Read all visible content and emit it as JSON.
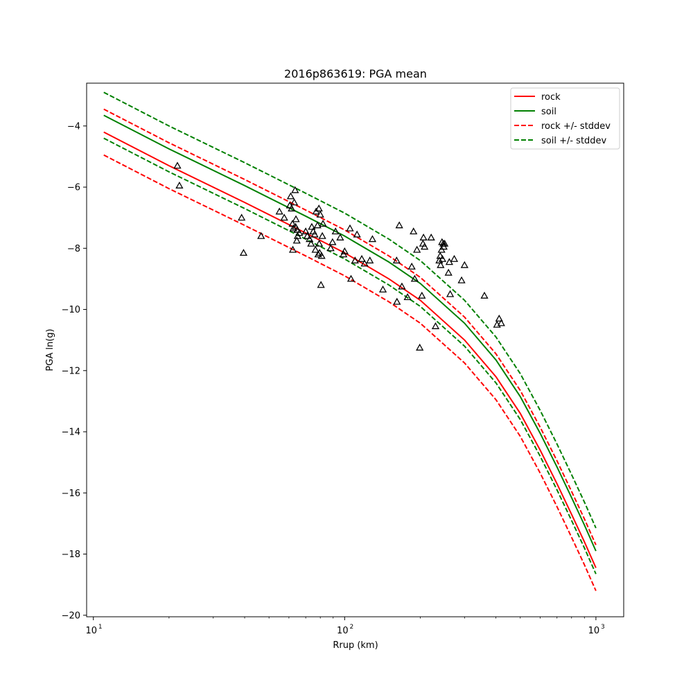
{
  "chart_data": {
    "type": "line",
    "title": "2016p863619: PGA mean",
    "xlabel": "Rrup (km)",
    "ylabel": "PGA ln(g)",
    "xscale": "log",
    "xlim": [
      9.4,
      1290
    ],
    "ylim": [
      -20.05,
      -2.6
    ],
    "x_ticks": [
      {
        "value": 10,
        "label": "10",
        "sup": "1"
      },
      {
        "value": 100,
        "label": "10",
        "sup": "2"
      },
      {
        "value": 1000,
        "label": "10",
        "sup": "3"
      }
    ],
    "y_ticks": [
      {
        "value": -4,
        "label": "−4"
      },
      {
        "value": -6,
        "label": "−6"
      },
      {
        "value": -8,
        "label": "−8"
      },
      {
        "value": -10,
        "label": "−10"
      },
      {
        "value": -12,
        "label": "−12"
      },
      {
        "value": -14,
        "label": "−14"
      },
      {
        "value": -16,
        "label": "−16"
      },
      {
        "value": -18,
        "label": "−18"
      },
      {
        "value": -20,
        "label": "−20"
      }
    ],
    "grid": false,
    "legend_position": "top-right",
    "series": [
      {
        "name": "rock",
        "color": "#ff0000",
        "style": "solid",
        "x": [
          11,
          20,
          40,
          70,
          100,
          150,
          200,
          300,
          400,
          500,
          600,
          700,
          800,
          900,
          1000
        ],
        "y": [
          -4.2,
          -5.3,
          -6.5,
          -7.5,
          -8.15,
          -9.0,
          -9.7,
          -11.0,
          -12.2,
          -13.4,
          -14.6,
          -15.7,
          -16.7,
          -17.6,
          -18.45
        ]
      },
      {
        "name": "soil",
        "color": "#008000",
        "style": "solid",
        "x": [
          11,
          20,
          40,
          70,
          100,
          150,
          200,
          300,
          400,
          500,
          600,
          700,
          800,
          900,
          1000
        ],
        "y": [
          -3.65,
          -4.75,
          -5.95,
          -6.95,
          -7.6,
          -8.45,
          -9.15,
          -10.45,
          -11.65,
          -12.85,
          -14.05,
          -15.15,
          -16.15,
          -17.05,
          -17.9
        ]
      },
      {
        "name": "rock +/- stddev",
        "color": "#ff0000",
        "style": "dashed",
        "x": [
          11,
          20,
          40,
          70,
          100,
          150,
          200,
          300,
          400,
          500,
          600,
          700,
          800,
          900,
          1000
        ],
        "y": [
          -3.45,
          -4.55,
          -5.75,
          -6.75,
          -7.4,
          -8.25,
          -8.95,
          -10.25,
          -11.45,
          -12.65,
          -13.85,
          -14.95,
          -15.95,
          -16.85,
          -17.7
        ]
      },
      {
        "name": "rock +/- stddev lower",
        "color": "#ff0000",
        "style": "dashed",
        "x": [
          11,
          20,
          40,
          70,
          100,
          150,
          200,
          300,
          400,
          500,
          600,
          700,
          800,
          900,
          1000
        ],
        "y": [
          -4.95,
          -6.05,
          -7.25,
          -8.25,
          -8.9,
          -9.75,
          -10.45,
          -11.75,
          -12.95,
          -14.15,
          -15.35,
          -16.45,
          -17.45,
          -18.35,
          -19.2
        ]
      },
      {
        "name": "soil +/- stddev",
        "color": "#008000",
        "style": "dashed",
        "x": [
          11,
          20,
          40,
          70,
          100,
          150,
          200,
          300,
          400,
          500,
          600,
          700,
          800,
          900,
          1000
        ],
        "y": [
          -2.9,
          -4.0,
          -5.2,
          -6.2,
          -6.85,
          -7.7,
          -8.4,
          -9.7,
          -10.9,
          -12.1,
          -13.3,
          -14.4,
          -15.4,
          -16.3,
          -17.15
        ]
      },
      {
        "name": "soil +/- stddev lower",
        "color": "#008000",
        "style": "dashed",
        "x": [
          11,
          20,
          40,
          70,
          100,
          150,
          200,
          300,
          400,
          500,
          600,
          700,
          800,
          900,
          1000
        ],
        "y": [
          -4.4,
          -5.5,
          -6.7,
          -7.7,
          -8.35,
          -9.2,
          -9.9,
          -11.2,
          -12.4,
          -13.6,
          -14.8,
          -15.9,
          -16.9,
          -17.8,
          -18.65
        ]
      }
    ],
    "legend": [
      {
        "label": "rock",
        "color": "#ff0000",
        "style": "solid"
      },
      {
        "label": "soil",
        "color": "#008000",
        "style": "solid"
      },
      {
        "label": "rock +/- stddev",
        "color": "#ff0000",
        "style": "dashed"
      },
      {
        "label": "soil +/- stddev",
        "color": "#008000",
        "style": "dashed"
      }
    ],
    "observations": {
      "marker": "triangle",
      "color": "#000000",
      "points": [
        [
          21.6,
          -5.3
        ],
        [
          22.0,
          -5.95
        ],
        [
          38.9,
          -7.0
        ],
        [
          39.6,
          -8.15
        ],
        [
          46.5,
          -7.6
        ],
        [
          55,
          -6.8
        ],
        [
          57.5,
          -7.0
        ],
        [
          60.5,
          -6.6
        ],
        [
          61,
          -6.3
        ],
        [
          61.5,
          -6.7
        ],
        [
          62,
          -7.2
        ],
        [
          62.2,
          -8.05
        ],
        [
          62.5,
          -7.35
        ],
        [
          63,
          -6.5
        ],
        [
          63.5,
          -6.1
        ],
        [
          63.8,
          -7.3
        ],
        [
          64,
          -7.05
        ],
        [
          64.5,
          -7.75
        ],
        [
          64.8,
          -7.4
        ],
        [
          65,
          -7.6
        ],
        [
          66,
          -7.5
        ],
        [
          70,
          -7.45
        ],
        [
          71,
          -7.6
        ],
        [
          72.5,
          -7.7
        ],
        [
          73.5,
          -7.85
        ],
        [
          74,
          -7.3
        ],
        [
          75,
          -7.45
        ],
        [
          76,
          -7.55
        ],
        [
          76.5,
          -8.05
        ],
        [
          77,
          -6.8
        ],
        [
          78,
          -7.25
        ],
        [
          78.5,
          -8.2
        ],
        [
          79,
          -6.7
        ],
        [
          79.2,
          -7.85
        ],
        [
          79.5,
          -8.15
        ],
        [
          80,
          -6.9
        ],
        [
          80.5,
          -9.2
        ],
        [
          81,
          -8.25
        ],
        [
          81.5,
          -7.6
        ],
        [
          82,
          -7.2
        ],
        [
          88,
          -8.0
        ],
        [
          89.5,
          -7.8
        ],
        [
          92,
          -7.45
        ],
        [
          96,
          -7.65
        ],
        [
          100,
          -8.1
        ],
        [
          99,
          -8.2
        ],
        [
          105,
          -7.35
        ],
        [
          106,
          -9.0
        ],
        [
          110,
          -8.4
        ],
        [
          112,
          -7.55
        ],
        [
          117,
          -8.35
        ],
        [
          120,
          -8.5
        ],
        [
          126,
          -8.4
        ],
        [
          129,
          -7.7
        ],
        [
          142,
          -9.35
        ],
        [
          161,
          -8.4
        ],
        [
          161.5,
          -9.75
        ],
        [
          165,
          -7.25
        ],
        [
          169,
          -9.25
        ],
        [
          178,
          -9.6
        ],
        [
          185,
          -8.6
        ],
        [
          188,
          -7.45
        ],
        [
          190,
          -9.0
        ],
        [
          194,
          -8.05
        ],
        [
          199,
          -11.25
        ],
        [
          203,
          -9.55
        ],
        [
          205,
          -7.85
        ],
        [
          206,
          -7.65
        ],
        [
          208,
          -7.95
        ],
        [
          221,
          -7.65
        ],
        [
          230,
          -10.55
        ],
        [
          238,
          -8.4
        ],
        [
          240,
          -8.25
        ],
        [
          241,
          -8.55
        ],
        [
          243,
          -8.05
        ],
        [
          244,
          -7.8
        ],
        [
          245,
          -8.35
        ],
        [
          247,
          -7.85
        ],
        [
          248,
          -7.95
        ],
        [
          250,
          -7.85
        ],
        [
          259,
          -8.8
        ],
        [
          261,
          -8.45
        ],
        [
          263,
          -9.5
        ],
        [
          273,
          -8.35
        ],
        [
          292,
          -9.05
        ],
        [
          300,
          -8.55
        ],
        [
          360,
          -9.55
        ],
        [
          404,
          -10.5
        ],
        [
          412,
          -10.3
        ],
        [
          420,
          -10.45
        ]
      ]
    }
  }
}
